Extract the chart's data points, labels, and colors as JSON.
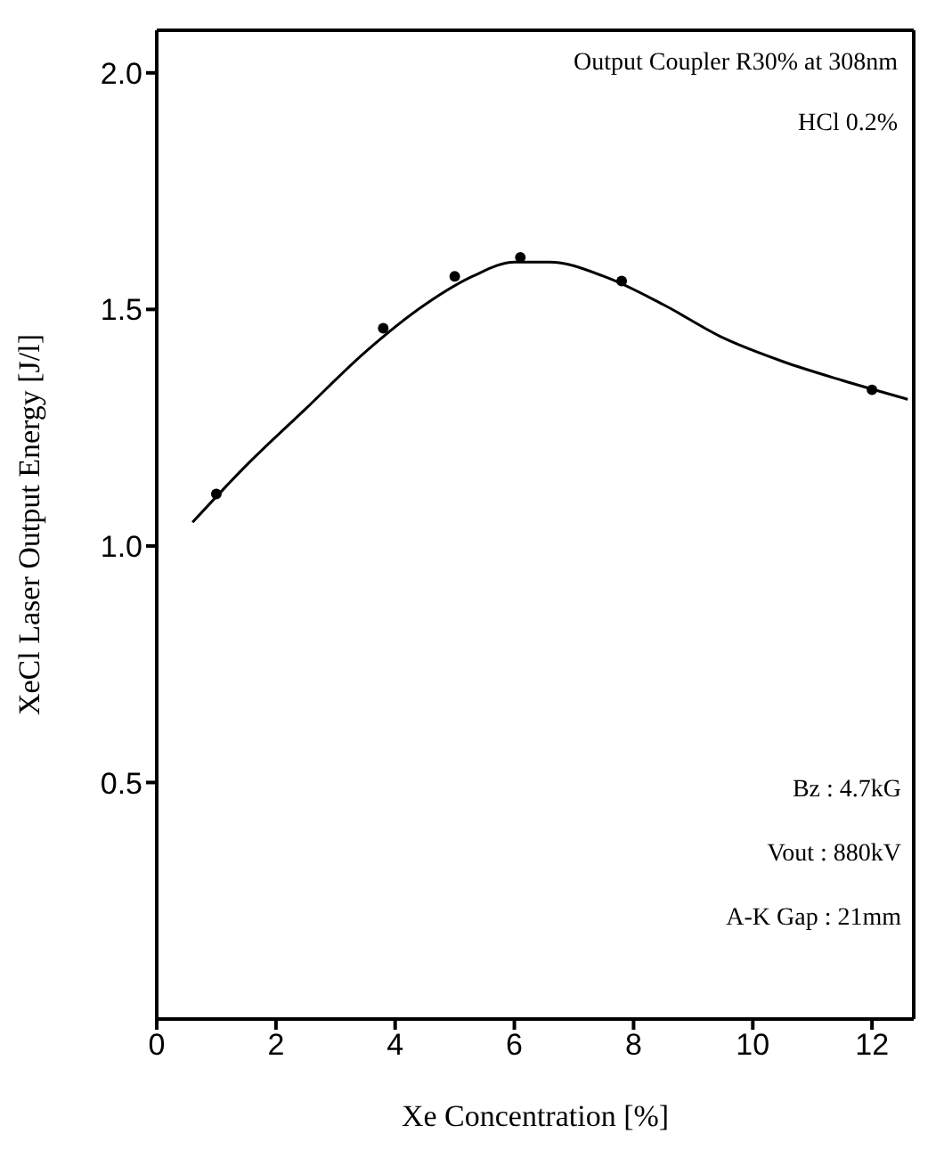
{
  "chart_data": {
    "type": "scatter",
    "xlabel": "Xe Concentration [%]",
    "ylabel": "XeCl Laser Output Energy [J/l]",
    "xlim": [
      0,
      12.7
    ],
    "xticks": [
      0,
      2,
      4,
      6,
      8,
      10,
      12
    ],
    "ylim": [
      0,
      2.09
    ],
    "yticks": [
      {
        "value": 0.5,
        "label": "0.5"
      },
      {
        "value": 1,
        "label": "1.0"
      },
      {
        "value": 1.5,
        "label": "1.5"
      },
      {
        "value": 2,
        "label": "2.0"
      }
    ],
    "grid": false,
    "legend": false,
    "marker": "circle",
    "series": [
      {
        "color": "#000000",
        "x": [
          1.0,
          3.8,
          5.0,
          6.1,
          7.8,
          12.0
        ],
        "values": [
          1.11,
          1.46,
          1.57,
          1.61,
          1.56,
          1.33
        ]
      },
      {
        "type": "line",
        "color": "#000000",
        "marker": "none",
        "x": [
          0.6,
          1.5,
          2.5,
          3.5,
          4.5,
          5.3,
          6.0,
          6.6,
          7.5,
          8.5,
          9.5,
          10.5,
          11.5,
          12.6
        ],
        "values": [
          1.05,
          1.17,
          1.29,
          1.41,
          1.51,
          1.57,
          1.6,
          1.6,
          1.57,
          1.51,
          1.44,
          1.39,
          1.35,
          1.31
        ]
      }
    ],
    "annotations": [
      "Output Coupler R30% at 308nm",
      "HCl 0.2%",
      "Bz : 4.7kG",
      "Vout : 880kV",
      "A-K Gap : 21mm"
    ]
  }
}
